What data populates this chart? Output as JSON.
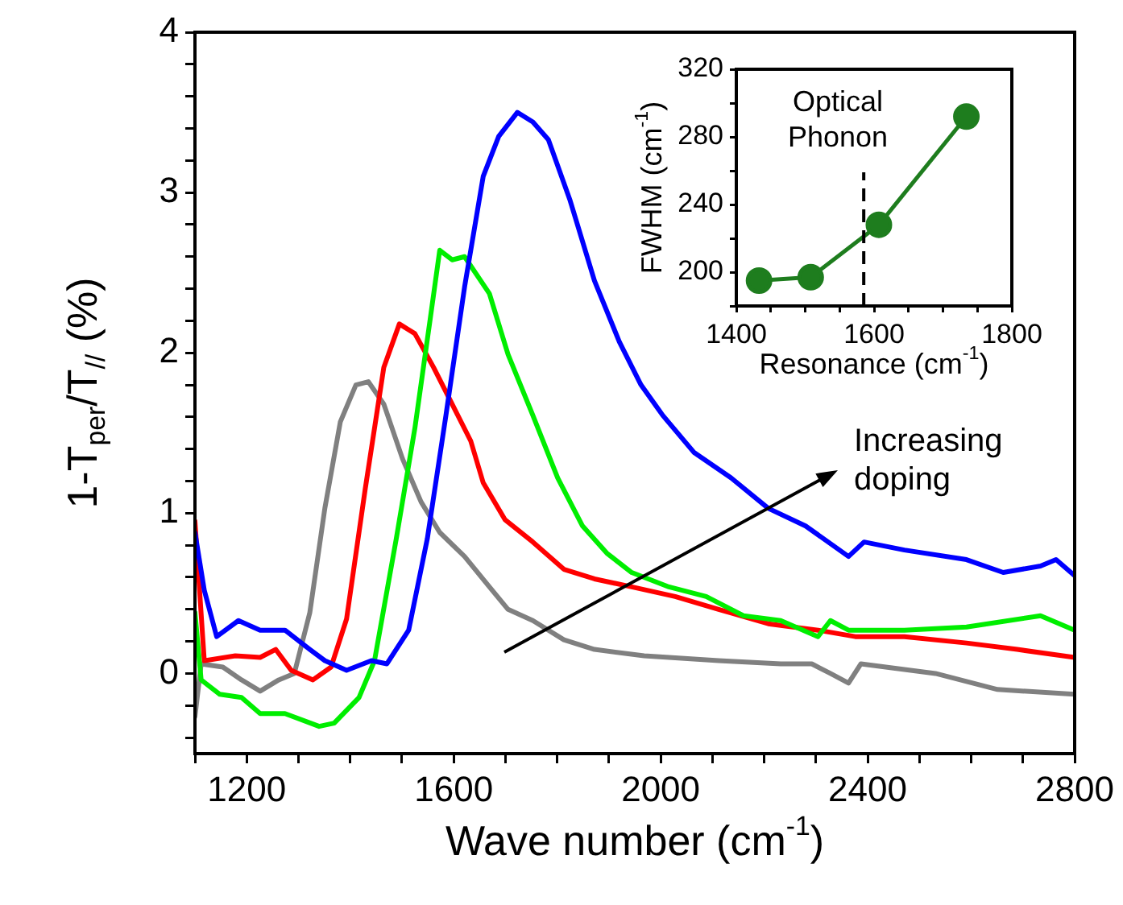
{
  "chart_data": [
    {
      "type": "line",
      "xlabel": "Wave number (cm$^{-1}$)",
      "ylabel": "1-T$_{per}$/T$_{//}$ (%)",
      "xlim": [
        1100,
        2800
      ],
      "ylim": [
        -0.5,
        4
      ],
      "xticks": [
        {
          "value": 1100,
          "label": null
        },
        1200,
        {
          "value": 1300,
          "label": null
        },
        {
          "value": 1400,
          "label": null
        },
        {
          "value": 1500,
          "label": null
        },
        1600,
        {
          "value": 1700,
          "label": null
        },
        {
          "value": 1800,
          "label": null
        },
        {
          "value": 1900,
          "label": null
        },
        2000,
        {
          "value": 2100,
          "label": null
        },
        {
          "value": 2200,
          "label": null
        },
        {
          "value": 2300,
          "label": null
        },
        2400,
        {
          "value": 2500,
          "label": null
        },
        {
          "value": 2600,
          "label": null
        },
        {
          "value": 2700,
          "label": null
        },
        2800
      ],
      "yticks": [
        {
          "value": -0.4,
          "label": null
        },
        {
          "value": -0.2,
          "label": null
        },
        0,
        {
          "value": 0.2,
          "label": null
        },
        {
          "value": 0.4,
          "label": null
        },
        {
          "value": 0.6,
          "label": null
        },
        {
          "value": 0.8,
          "label": null
        },
        1,
        {
          "value": 1.2,
          "label": null
        },
        {
          "value": 1.4,
          "label": null
        },
        {
          "value": 1.6,
          "label": null
        },
        {
          "value": 1.8,
          "label": null
        },
        2,
        {
          "value": 2.2,
          "label": null
        },
        {
          "value": 2.4,
          "label": null
        },
        {
          "value": 2.6,
          "label": null
        },
        {
          "value": 2.8,
          "label": null
        },
        3,
        {
          "value": 3.2,
          "label": null
        },
        {
          "value": 3.4,
          "label": null
        },
        {
          "value": 3.6,
          "label": null
        },
        {
          "value": 3.8,
          "label": null
        },
        4
      ],
      "grid": false,
      "legend": false,
      "marker": "none",
      "line_style": "solid",
      "annotations": [
        "Increasing\ndoping"
      ],
      "series": [
        {
          "color": "#0000ff",
          "x": [
            1100,
            1118,
            1142,
            1184,
            1226,
            1274,
            1322,
            1351,
            1393,
            1441,
            1471,
            1513,
            1549,
            1585,
            1621,
            1657,
            1687,
            1723,
            1753,
            1783,
            1825,
            1872,
            1920,
            1962,
            2004,
            2064,
            2136,
            2208,
            2280,
            2363,
            2393,
            2471,
            2591,
            2662,
            2734,
            2764,
            2800
          ],
          "values": [
            0.88,
            0.52,
            0.23,
            0.33,
            0.27,
            0.27,
            0.15,
            0.08,
            0.02,
            0.08,
            0.06,
            0.27,
            0.84,
            1.61,
            2.41,
            3.1,
            3.35,
            3.5,
            3.44,
            3.33,
            2.95,
            2.45,
            2.07,
            1.8,
            1.61,
            1.38,
            1.22,
            1.03,
            0.92,
            0.73,
            0.82,
            0.77,
            0.71,
            0.63,
            0.67,
            0.71,
            0.61
          ]
        },
        {
          "color": "#00ee00",
          "x": [
            1100,
            1112,
            1148,
            1190,
            1226,
            1274,
            1340,
            1369,
            1417,
            1447,
            1489,
            1525,
            1555,
            1573,
            1597,
            1621,
            1669,
            1705,
            1753,
            1801,
            1849,
            1896,
            1944,
            2016,
            2088,
            2160,
            2232,
            2304,
            2328,
            2363,
            2471,
            2591,
            2734,
            2800
          ],
          "values": [
            0.38,
            -0.04,
            -0.13,
            -0.15,
            -0.25,
            -0.25,
            -0.33,
            -0.31,
            -0.15,
            0.08,
            0.84,
            1.53,
            2.22,
            2.64,
            2.58,
            2.6,
            2.37,
            1.99,
            1.61,
            1.22,
            0.92,
            0.75,
            0.63,
            0.54,
            0.48,
            0.36,
            0.33,
            0.23,
            0.33,
            0.27,
            0.27,
            0.29,
            0.36,
            0.27
          ]
        },
        {
          "color": "#ff0000",
          "x": [
            1100,
            1118,
            1178,
            1226,
            1256,
            1286,
            1328,
            1363,
            1393,
            1429,
            1465,
            1495,
            1525,
            1561,
            1597,
            1633,
            1657,
            1699,
            1753,
            1813,
            1872,
            1944,
            2028,
            2112,
            2208,
            2304,
            2376,
            2471,
            2591,
            2689,
            2800
          ],
          "values": [
            0.95,
            0.08,
            0.11,
            0.1,
            0.15,
            0.02,
            -0.04,
            0.04,
            0.34,
            1.15,
            1.91,
            2.18,
            2.12,
            1.91,
            1.68,
            1.45,
            1.19,
            0.96,
            0.82,
            0.65,
            0.59,
            0.54,
            0.48,
            0.4,
            0.31,
            0.27,
            0.23,
            0.23,
            0.19,
            0.15,
            0.1
          ]
        },
        {
          "color": "#808080",
          "x": [
            1100,
            1112,
            1154,
            1190,
            1226,
            1262,
            1292,
            1322,
            1351,
            1381,
            1411,
            1435,
            1465,
            1501,
            1537,
            1573,
            1621,
            1669,
            1705,
            1753,
            1813,
            1872,
            1968,
            2112,
            2232,
            2292,
            2328,
            2363,
            2387,
            2531,
            2651,
            2800
          ],
          "values": [
            -0.27,
            0.06,
            0.04,
            -0.04,
            -0.11,
            -0.04,
            0,
            0.38,
            1.03,
            1.57,
            1.8,
            1.82,
            1.68,
            1.34,
            1.07,
            0.88,
            0.73,
            0.54,
            0.4,
            0.33,
            0.21,
            0.15,
            0.11,
            0.08,
            0.06,
            0.06,
            0,
            -0.06,
            0.06,
            0,
            -0.1,
            -0.13
          ]
        }
      ]
    },
    {
      "type": "line",
      "xlabel": "Resonance (cm$^{-1}$)",
      "ylabel": "FWHM (cm$^{-1}$)",
      "xlim": [
        1400,
        1800
      ],
      "ylim": [
        180,
        320
      ],
      "xticks": [
        1400,
        {
          "value": 1450,
          "label": null
        },
        {
          "value": 1500,
          "label": null
        },
        {
          "value": 1550,
          "label": null
        },
        1600,
        {
          "value": 1650,
          "label": null
        },
        {
          "value": 1700,
          "label": null
        },
        {
          "value": 1750,
          "label": null
        },
        1800
      ],
      "yticks": [
        {
          "value": 180,
          "label": null
        },
        200,
        {
          "value": 220,
          "label": null
        },
        240,
        {
          "value": 260,
          "label": null
        },
        280,
        {
          "value": 300,
          "label": null
        },
        320
      ],
      "grid": false,
      "legend": false,
      "marker": "circle",
      "line_style": "solid",
      "annotations": [
        "Optical\nPhonon"
      ],
      "ref_lines": [
        {
          "axis": "x",
          "value": 1585,
          "color": "#000000",
          "line_style": "dashed"
        }
      ],
      "series": [
        {
          "color": "#1e7d1e",
          "x": [
            1433,
            1508,
            1607,
            1734
          ],
          "values": [
            195,
            197,
            228,
            292
          ]
        }
      ]
    }
  ]
}
